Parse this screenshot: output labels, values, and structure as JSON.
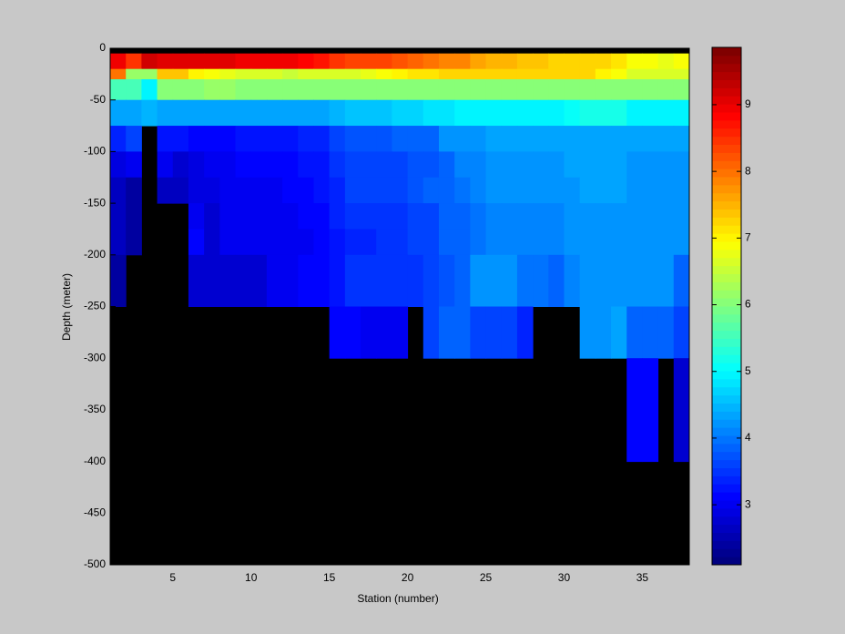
{
  "chart_data": {
    "type": "heatmap",
    "xlabel": "Station (number)",
    "ylabel": "Depth (meter)",
    "colormap": "jet",
    "nan_color": "#000000",
    "xlim": [
      1,
      38
    ],
    "ylim": [
      -500,
      0
    ],
    "xticks": [
      5,
      10,
      15,
      20,
      25,
      30,
      35
    ],
    "yticks": [
      0,
      -50,
      -100,
      -150,
      -200,
      -250,
      -300,
      -350,
      -400,
      -450,
      -500
    ],
    "clim": [
      2.1,
      9.86
    ],
    "cticks": [
      3,
      4,
      5,
      6,
      7,
      8,
      9
    ],
    "x": [
      1,
      2,
      3,
      4,
      5,
      6,
      7,
      8,
      9,
      10,
      11,
      12,
      13,
      14,
      15,
      16,
      17,
      18,
      19,
      20,
      21,
      22,
      23,
      24,
      25,
      26,
      27,
      28,
      29,
      30,
      31,
      32,
      33,
      34,
      35,
      36,
      37,
      38
    ],
    "y": [
      0,
      -5,
      -20,
      -30,
      -50,
      -75,
      -100,
      -125,
      -150,
      -175,
      -200,
      -250,
      -300,
      -400,
      -500
    ],
    "values": [
      [
        null,
        null,
        null,
        null,
        null,
        null,
        null,
        null,
        null,
        null,
        null,
        null,
        null,
        null,
        null,
        null,
        null,
        null,
        null,
        null,
        null,
        null,
        null,
        null,
        null,
        null,
        null,
        null,
        null,
        null,
        null,
        null,
        null,
        null,
        null,
        null,
        null
      ],
      [
        8.9,
        8.5,
        9.2,
        9.1,
        9.1,
        9.1,
        9.1,
        9.1,
        9.0,
        9.0,
        8.9,
        8.9,
        8.8,
        8.7,
        8.5,
        8.4,
        8.3,
        8.3,
        8.2,
        8.1,
        8.0,
        7.9,
        7.8,
        7.6,
        7.5,
        7.5,
        7.4,
        7.4,
        7.3,
        7.3,
        7.3,
        7.2,
        7.1,
        6.9,
        6.9,
        6.8,
        6.9
      ],
      [
        8.0,
        6.2,
        6.2,
        7.4,
        7.4,
        7.0,
        6.9,
        6.8,
        6.7,
        6.6,
        6.6,
        6.5,
        6.6,
        6.6,
        6.6,
        6.7,
        6.8,
        6.9,
        7.0,
        7.1,
        7.1,
        7.2,
        7.2,
        7.3,
        7.3,
        7.3,
        7.3,
        7.3,
        7.2,
        7.2,
        7.2,
        7.0,
        6.9,
        6.7,
        6.7,
        6.6,
        6.7
      ],
      [
        5.6,
        5.6,
        5.0,
        6.1,
        6.1,
        6.1,
        6.2,
        6.2,
        6.1,
        6.1,
        6.1,
        6.1,
        6.1,
        6.1,
        6.1,
        6.1,
        6.1,
        6.1,
        6.1,
        6.1,
        6.1,
        6.1,
        6.1,
        6.1,
        6.1,
        6.1,
        6.1,
        6.1,
        6.1,
        6.0,
        6.0,
        6.0,
        6.0,
        6.0,
        6.0,
        6.0,
        6.0
      ],
      [
        4.3,
        4.3,
        4.5,
        4.4,
        4.4,
        4.3,
        4.3,
        4.3,
        4.3,
        4.4,
        4.4,
        4.4,
        4.4,
        4.4,
        4.5,
        4.6,
        4.6,
        4.6,
        4.7,
        4.7,
        4.8,
        4.8,
        4.9,
        5.0,
        5.0,
        5.0,
        4.9,
        4.9,
        5.0,
        5.1,
        5.2,
        5.2,
        5.2,
        5.0,
        4.9,
        4.9,
        4.9
      ],
      [
        3.4,
        3.6,
        null,
        3.3,
        3.2,
        3.1,
        3.1,
        3.1,
        3.2,
        3.2,
        3.2,
        3.3,
        3.4,
        3.4,
        3.6,
        3.7,
        3.7,
        3.7,
        3.8,
        3.9,
        3.9,
        4.2,
        4.2,
        4.2,
        4.3,
        4.3,
        4.4,
        4.4,
        4.4,
        4.4,
        4.4,
        4.4,
        4.3,
        4.3,
        4.3,
        4.3,
        4.3
      ],
      [
        2.9,
        3.0,
        null,
        3.0,
        2.8,
        2.9,
        3.0,
        3.0,
        3.1,
        3.1,
        3.1,
        3.1,
        3.2,
        3.3,
        3.5,
        3.6,
        3.6,
        3.6,
        3.6,
        3.7,
        3.7,
        3.9,
        4.1,
        4.1,
        4.2,
        4.2,
        4.2,
        4.2,
        4.2,
        4.3,
        4.3,
        4.3,
        4.3,
        4.2,
        4.2,
        4.2,
        4.2
      ],
      [
        2.7,
        2.4,
        null,
        2.6,
        2.6,
        2.9,
        2.9,
        3.0,
        3.0,
        3.0,
        3.0,
        3.1,
        3.1,
        3.2,
        3.4,
        3.6,
        3.6,
        3.6,
        3.6,
        3.7,
        3.8,
        3.9,
        4.0,
        4.1,
        4.2,
        4.2,
        4.2,
        4.2,
        4.2,
        4.2,
        4.3,
        4.3,
        4.3,
        4.2,
        4.2,
        4.2,
        4.2
      ],
      [
        2.7,
        2.4,
        null,
        null,
        null,
        3.0,
        2.8,
        3.0,
        3.0,
        3.0,
        3.0,
        3.0,
        3.1,
        3.1,
        3.4,
        3.5,
        3.5,
        3.5,
        3.5,
        3.6,
        3.6,
        3.8,
        3.8,
        4.0,
        4.1,
        4.1,
        4.1,
        4.1,
        4.1,
        4.2,
        4.2,
        4.2,
        4.2,
        4.2,
        4.2,
        4.2,
        4.2
      ],
      [
        2.7,
        2.4,
        null,
        null,
        null,
        3.1,
        2.8,
        3.0,
        3.0,
        3.0,
        3.0,
        3.0,
        3.0,
        3.1,
        3.3,
        3.4,
        3.4,
        3.5,
        3.5,
        3.6,
        3.6,
        3.8,
        3.9,
        4.0,
        4.1,
        4.1,
        4.1,
        4.1,
        4.1,
        4.2,
        4.2,
        4.2,
        4.2,
        4.2,
        4.2,
        4.2,
        4.2
      ],
      [
        2.4,
        null,
        null,
        null,
        null,
        2.8,
        2.8,
        2.8,
        2.8,
        2.8,
        3.0,
        3.0,
        3.1,
        3.1,
        3.3,
        3.5,
        3.5,
        3.5,
        3.5,
        3.5,
        3.6,
        3.7,
        3.8,
        4.2,
        4.2,
        4.2,
        4.0,
        4.0,
        3.9,
        4.1,
        4.2,
        4.2,
        4.2,
        4.2,
        4.2,
        4.2,
        3.9
      ],
      [
        null,
        null,
        null,
        null,
        null,
        null,
        null,
        null,
        null,
        null,
        null,
        null,
        null,
        null,
        3.1,
        3.1,
        3.0,
        3.0,
        3.0,
        null,
        3.6,
        3.9,
        3.9,
        3.6,
        3.6,
        3.6,
        3.4,
        null,
        null,
        null,
        4.2,
        4.2,
        4.3,
        3.8,
        3.8,
        3.8,
        3.6
      ],
      [
        null,
        null,
        null,
        null,
        null,
        null,
        null,
        null,
        null,
        null,
        null,
        null,
        null,
        null,
        null,
        null,
        null,
        null,
        null,
        null,
        null,
        null,
        null,
        null,
        null,
        null,
        null,
        null,
        null,
        null,
        null,
        null,
        null,
        3.1,
        3.1,
        null,
        2.8
      ],
      [
        null,
        null,
        null,
        null,
        null,
        null,
        null,
        null,
        null,
        null,
        null,
        null,
        null,
        null,
        null,
        null,
        null,
        null,
        null,
        null,
        null,
        null,
        null,
        null,
        null,
        null,
        null,
        null,
        null,
        null,
        null,
        null,
        null,
        null,
        null,
        null,
        null
      ]
    ]
  }
}
